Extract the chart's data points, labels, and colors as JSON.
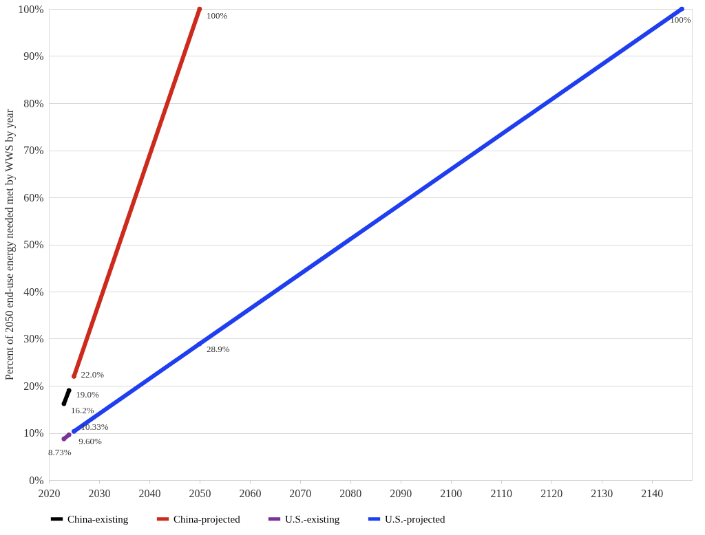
{
  "chart_data": {
    "type": "line",
    "ylabel": "Percent of 2050 end-use energy needed met by WWS by year",
    "xlim": [
      2020,
      2148
    ],
    "xticks": [
      2020,
      2030,
      2040,
      2050,
      2060,
      2070,
      2080,
      2090,
      2100,
      2110,
      2120,
      2130,
      2140
    ],
    "ylim": [
      0,
      100
    ],
    "yticks": [
      {
        "value": 0,
        "label": "0%"
      },
      {
        "value": 10,
        "label": "10%"
      },
      {
        "value": 20,
        "label": "20%"
      },
      {
        "value": 30,
        "label": "30%"
      },
      {
        "value": 40,
        "label": "40%"
      },
      {
        "value": 50,
        "label": "50%"
      },
      {
        "value": 60,
        "label": "60%"
      },
      {
        "value": 70,
        "label": "70%"
      },
      {
        "value": 80,
        "label": "80%"
      },
      {
        "value": 90,
        "label": "90%"
      },
      {
        "value": 100,
        "label": "100%"
      }
    ],
    "grid": "y",
    "legend": "bottom",
    "marker": "circle",
    "line_style": "solid",
    "series": [
      {
        "name": "China-existing",
        "color": "#000000",
        "x": [
          2023,
          2024
        ],
        "values": [
          16.2,
          19.0
        ],
        "value_labels": [
          "16.2%",
          "19.0%"
        ]
      },
      {
        "name": "China-projected",
        "color": "#cc2a1c",
        "x": [
          2025,
          2050
        ],
        "values": [
          22.0,
          100
        ],
        "value_labels": [
          "22.0%",
          "100%"
        ]
      },
      {
        "name": "U.S.-existing",
        "color": "#7b3294",
        "x": [
          2023,
          2024
        ],
        "values": [
          8.73,
          9.6
        ],
        "value_labels": [
          "8.73%",
          "9.60%"
        ]
      },
      {
        "name": "U.S.-projected",
        "color": "#1f3ef0",
        "x": [
          2025,
          2050,
          2146
        ],
        "values": [
          10.33,
          28.9,
          100
        ],
        "value_labels": [
          "10.33%",
          "28.9%",
          "100%"
        ]
      }
    ]
  }
}
